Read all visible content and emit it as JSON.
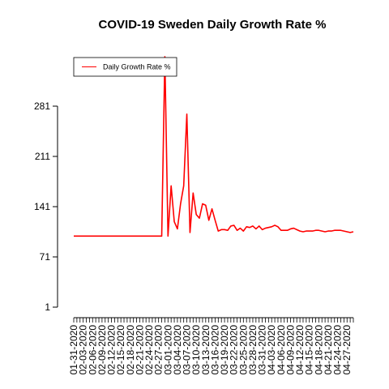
{
  "chart_data": {
    "type": "line",
    "title": "COVID-19 Sweden Daily Growth Rate %",
    "xlabel": "",
    "ylabel": "",
    "legend": {
      "position": "top-left",
      "entries": [
        "Daily Growth Rate %"
      ]
    },
    "grid": false,
    "series_color": "#ff0000",
    "ylim": [
      1,
      351
    ],
    "y_ticks": [
      1,
      71,
      141,
      211,
      281
    ],
    "y_tick_labels": [
      "1",
      "71",
      "141",
      "211",
      "281"
    ],
    "x_label_dates": [
      "01-31-2020",
      "02-03-2020",
      "02-06-2020",
      "02-09-2020",
      "02-12-2020",
      "02-15-2020",
      "02-18-2020",
      "02-21-2020",
      "02-24-2020",
      "02-27-2020",
      "03-01-2020",
      "03-04-2020",
      "03-07-2020",
      "03-10-2020",
      "03-13-2020",
      "03-16-2020",
      "03-19-2020",
      "03-22-2020",
      "03-25-2020",
      "03-28-2020",
      "03-31-2020",
      "04-03-2020",
      "04-06-2020",
      "04-09-2020",
      "04-12-2020",
      "04-15-2020",
      "04-18-2020",
      "04-21-2020",
      "04-24-2020",
      "04-27-2020"
    ],
    "series": [
      {
        "name": "Daily Growth Rate %",
        "start_date": "01-31-2020",
        "values": [
          100,
          100,
          100,
          100,
          100,
          100,
          100,
          100,
          100,
          100,
          100,
          100,
          100,
          100,
          100,
          100,
          100,
          100,
          100,
          100,
          100,
          100,
          100,
          100,
          100,
          100,
          100,
          100,
          100,
          350,
          100,
          170,
          120,
          110,
          145,
          170,
          270,
          105,
          160,
          130,
          125,
          145,
          143,
          122,
          138,
          122,
          107,
          109,
          109,
          108,
          114,
          115,
          108,
          111,
          107,
          113,
          112,
          114,
          110,
          114,
          109,
          111,
          112,
          113,
          115,
          113,
          108,
          108,
          108,
          110,
          111,
          109,
          107,
          106,
          107,
          107,
          107,
          108,
          108,
          107,
          106,
          107,
          107,
          108,
          108,
          108,
          107,
          106,
          105,
          106
        ]
      }
    ]
  }
}
